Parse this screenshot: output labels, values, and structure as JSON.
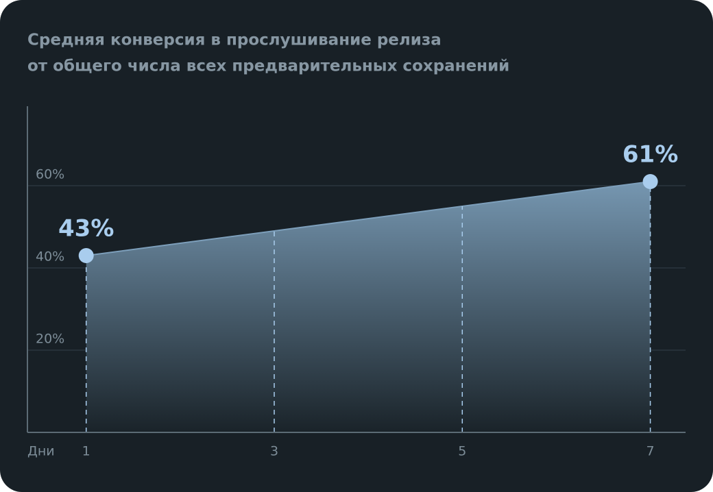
{
  "chart_data": {
    "type": "area",
    "title": [
      "Средняя конверсия в прослушивание релиза",
      "от общего числа всех предварительных сохранений"
    ],
    "x_label": "Дни",
    "x": [
      1,
      7
    ],
    "values": [
      43,
      61
    ],
    "value_labels": [
      "43%",
      "61%"
    ],
    "color": "#a9cdee",
    "xlim": [
      0.375,
      7.375
    ],
    "xticks": [
      1,
      3,
      5,
      7
    ],
    "ylim": [
      0,
      80
    ],
    "yticks": [
      {
        "value": 20,
        "label": "20%"
      },
      {
        "value": 40,
        "label": "40%"
      },
      {
        "value": 60,
        "label": "60%"
      }
    ],
    "grid": true
  }
}
